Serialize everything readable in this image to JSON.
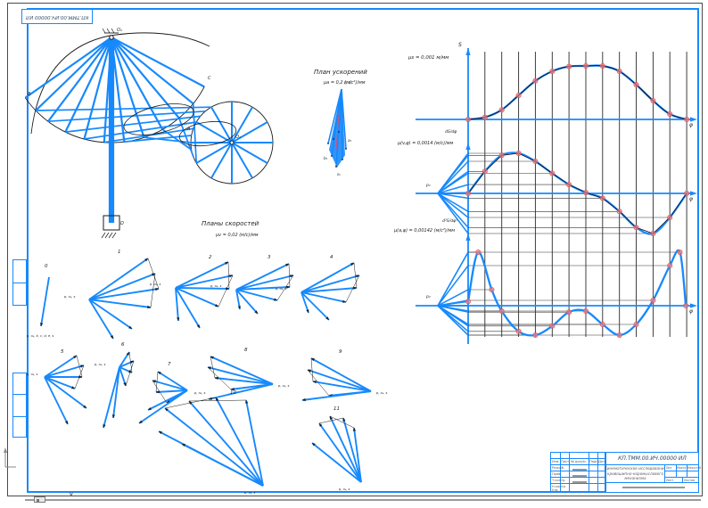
{
  "title_block": {
    "doc_number": "КП.ТММ.00.ИЧ.00000 ИЛ",
    "header_cols": [
      "Изм.",
      "Лист",
      "№ докум.",
      "Подп.",
      "Дата"
    ],
    "rows": [
      "Разраб.",
      "Пров.",
      "Т.контр.",
      "Н.контр.",
      "Утв."
    ],
    "title_lines": [
      "Кинематическое исследование",
      "кривошипно-коромыслового",
      "механизма"
    ],
    "lit_label": "Лит.",
    "mass_label": "Масса",
    "scale_label": "Масштаб",
    "sheet_label": "Лист",
    "sheets_label": "Листов"
  },
  "captions": {
    "acceleration_plan_title": "План ускорений",
    "acceleration_plan_scale": "μa = 0,2 (м/с²)/мм",
    "velocity_plans_title": "Планы скоростей",
    "velocity_plans_scale": "μv = 0,02 (м/с)/мм"
  },
  "graphs": {
    "s_label": "μs = 0,001 м/мм",
    "v_label": "μ(v,φ) = 0,0014 (м/с)/мм",
    "a_label": "μ(a,φ) = 0,00142 (м/с²)/мм",
    "s_axis": "S",
    "v_axis": "dS/dφ",
    "a_axis": "d²S/dφ²",
    "phi_axis": "φ",
    "pole1": "p₁",
    "pole2": "p₂",
    "grid": "13 vertical lines through all three diagrams",
    "legend_position": "none"
  },
  "chart_data": [
    {
      "type": "line",
      "title": "S(φ) — диаграмма перемещения",
      "xlabel": "φ",
      "ylabel": "S",
      "scale_note": "μs = 0,001 м/мм",
      "x": [
        0,
        1,
        2,
        3,
        4,
        5,
        6,
        7,
        8,
        9,
        10,
        11,
        12,
        13
      ],
      "values": [
        0,
        0.04,
        0.18,
        0.45,
        0.72,
        0.9,
        0.99,
        1,
        1,
        0.9,
        0.65,
        0.35,
        0.1,
        0
      ],
      "ylim": [
        0,
        1
      ],
      "markers": true
    },
    {
      "type": "line",
      "title": "dS/dφ — аналог скорости",
      "xlabel": "φ",
      "ylabel": "dS/dφ",
      "scale_note": "μ(v,φ) = 0,0014 (м/с)/мм",
      "x": [
        0,
        1,
        2,
        3,
        4,
        5,
        6,
        7,
        8,
        9,
        10,
        11,
        12,
        13
      ],
      "values": [
        0,
        0.55,
        0.95,
        1,
        0.8,
        0.5,
        0.22,
        0.02,
        -0.12,
        -0.45,
        -0.85,
        -1,
        -0.6,
        0
      ],
      "ylim": [
        -1,
        1
      ],
      "markers": true
    },
    {
      "type": "line",
      "title": "d²S/dφ² — аналог ускорения",
      "xlabel": "φ",
      "ylabel": "d²S/dφ²",
      "scale_note": "μ(a,φ) = 0,00142 (м/с²)/мм",
      "x": [
        0,
        0.6,
        1.4,
        2,
        3,
        4,
        5,
        6,
        7,
        8,
        9,
        10,
        11,
        12,
        12.6,
        12.95
      ],
      "values": [
        0.08,
        1,
        0.3,
        -0.1,
        -0.48,
        -0.55,
        -0.38,
        -0.12,
        -0.1,
        -0.35,
        -0.55,
        -0.35,
        0.1,
        0.75,
        1,
        0
      ],
      "ylim": [
        -1,
        1
      ],
      "markers": true
    }
  ],
  "velocity_plans": [
    {
      "number": "0",
      "pole_label": "p, o₆, b, c, d, e, s"
    },
    {
      "number": "1",
      "pole_label": "p, o₆, s"
    },
    {
      "number": "2",
      "pole_label": "p, o₆, s"
    },
    {
      "number": "3",
      "pole_label": "p, o₆, s"
    },
    {
      "number": "4",
      "pole_label": "p, o₆, s"
    },
    {
      "number": "5",
      "pole_label": "p, o₆, s"
    },
    {
      "number": "6",
      "pole_label": "p, o₆, s"
    },
    {
      "number": "7",
      "pole_label": "p, o₆, s"
    },
    {
      "number": "8",
      "pole_label": "p, o₆, s"
    },
    {
      "number": "9",
      "pole_label": "p, o₆, s"
    },
    {
      "number": "10",
      "pole_label": "p, o₆, s"
    },
    {
      "number": "11",
      "pole_label": "p, o₆, s"
    }
  ],
  "accel_plan": {
    "pole_label": "π, o",
    "vector_labels": [
      "a₅",
      "b₅",
      "s₅"
    ]
  },
  "mechanism": {
    "labels": [
      "O₂",
      "O₁",
      "A",
      "B",
      "C",
      "D"
    ]
  }
}
